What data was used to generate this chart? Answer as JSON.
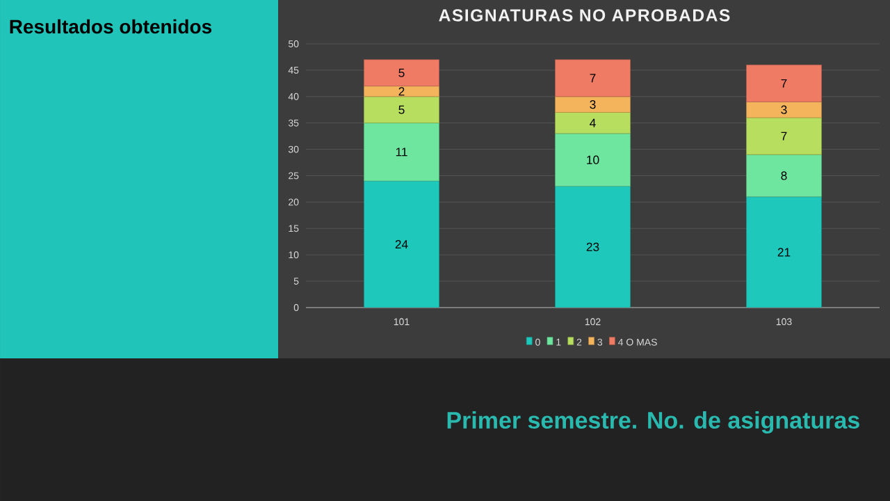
{
  "chart_data": {
    "type": "bar",
    "stacked": true,
    "title": "ASIGNATURAS NO APROBADAS",
    "categories": [
      "101",
      "102",
      "103"
    ],
    "series": [
      {
        "name": "0",
        "color": "#1ec8bb",
        "values": [
          24,
          23,
          21
        ]
      },
      {
        "name": "1",
        "color": "#6ee6a0",
        "values": [
          11,
          10,
          8
        ]
      },
      {
        "name": "2",
        "color": "#b7de5e",
        "values": [
          5,
          4,
          7
        ]
      },
      {
        "name": "3",
        "color": "#f3b45c",
        "values": [
          2,
          3,
          3
        ]
      },
      {
        "name": "4 O MAS",
        "color": "#ef7b65",
        "values": [
          5,
          7,
          7
        ]
      }
    ],
    "ylim": [
      0,
      50
    ],
    "yticks": [
      0,
      5,
      10,
      15,
      20,
      25,
      30,
      35,
      40,
      45,
      50
    ],
    "grid": "y",
    "legend": "bottom",
    "data_labels": true,
    "annotations": [
      "Resultados obtenidos",
      "Primer semestre. No. de asignaturas"
    ]
  }
}
